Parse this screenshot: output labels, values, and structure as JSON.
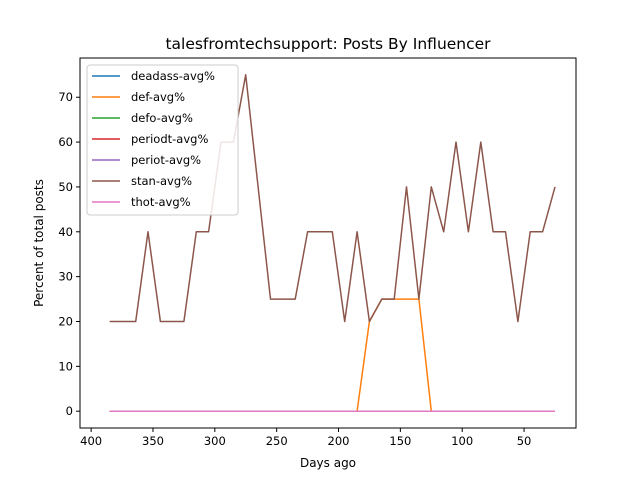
{
  "chart_data": {
    "type": "line",
    "title": "talesfromtechsupport: Posts By Influencer",
    "xlabel": "Days ago",
    "ylabel": "Percent of total posts",
    "xlim": [
      409,
      8
    ],
    "ylim": [
      -3.75,
      78.75
    ],
    "x_inverted": true,
    "xticks": [
      400,
      350,
      300,
      250,
      200,
      150,
      100,
      50
    ],
    "yticks": [
      0,
      10,
      20,
      30,
      40,
      50,
      60,
      70
    ],
    "legend": {
      "placement": "upper-left"
    },
    "grid": false,
    "x": [
      385,
      375,
      364,
      354,
      344,
      334,
      325,
      315,
      305,
      295,
      285,
      275,
      265,
      255,
      245,
      235,
      225,
      215,
      205,
      195,
      185,
      175,
      165,
      155,
      145,
      135,
      125,
      115,
      105,
      95,
      85,
      75,
      65,
      55,
      45,
      35,
      25
    ],
    "series": [
      {
        "name": "deadass-avg%",
        "color": "#1f77b4",
        "values": [
          0,
          0,
          0,
          0,
          0,
          0,
          0,
          0,
          0,
          0,
          0,
          0,
          0,
          0,
          0,
          0,
          0,
          0,
          0,
          0,
          0,
          0,
          0,
          0,
          0,
          0,
          0,
          0,
          0,
          0,
          0,
          0,
          0,
          0,
          0,
          0,
          0
        ]
      },
      {
        "name": "def-avg%",
        "color": "#ff7f0e",
        "values": [
          0,
          0,
          0,
          0,
          0,
          0,
          0,
          0,
          0,
          0,
          0,
          0,
          0,
          0,
          0,
          0,
          0,
          0,
          0,
          0,
          0,
          20,
          25,
          25,
          25,
          25,
          0,
          0,
          0,
          0,
          0,
          0,
          0,
          0,
          0,
          0,
          0
        ]
      },
      {
        "name": "defo-avg%",
        "color": "#2ca02c",
        "values": [
          0,
          0,
          0,
          0,
          0,
          0,
          0,
          0,
          0,
          0,
          0,
          0,
          0,
          0,
          0,
          0,
          0,
          0,
          0,
          0,
          0,
          0,
          0,
          0,
          0,
          0,
          0,
          0,
          0,
          0,
          0,
          0,
          0,
          0,
          0,
          0,
          0
        ]
      },
      {
        "name": "periodt-avg%",
        "color": "#d62728",
        "values": [
          0,
          0,
          0,
          0,
          0,
          0,
          0,
          0,
          0,
          0,
          0,
          0,
          0,
          0,
          0,
          0,
          0,
          0,
          0,
          0,
          0,
          0,
          0,
          0,
          0,
          0,
          0,
          0,
          0,
          0,
          0,
          0,
          0,
          0,
          0,
          0,
          0
        ]
      },
      {
        "name": "periot-avg%",
        "color": "#9467bd",
        "values": [
          0,
          0,
          0,
          0,
          0,
          0,
          0,
          0,
          0,
          0,
          0,
          0,
          0,
          0,
          0,
          0,
          0,
          0,
          0,
          0,
          0,
          0,
          0,
          0,
          0,
          0,
          0,
          0,
          0,
          0,
          0,
          0,
          0,
          0,
          0,
          0,
          0
        ]
      },
      {
        "name": "stan-avg%",
        "color": "#8c564b",
        "values": [
          20,
          20,
          20,
          40,
          20,
          20,
          20,
          40,
          40,
          60,
          60,
          75,
          50,
          25,
          25,
          25,
          40,
          40,
          40,
          20,
          40,
          20,
          25,
          25,
          50,
          25,
          50,
          40,
          60,
          40,
          60,
          40,
          40,
          20,
          40,
          40,
          50
        ]
      },
      {
        "name": "thot-avg%",
        "color": "#e377c2",
        "values": [
          0,
          0,
          0,
          0,
          0,
          0,
          0,
          0,
          0,
          0,
          0,
          0,
          0,
          0,
          0,
          0,
          0,
          0,
          0,
          0,
          0,
          0,
          0,
          0,
          0,
          0,
          0,
          0,
          0,
          0,
          0,
          0,
          0,
          0,
          0,
          0,
          0
        ]
      }
    ]
  }
}
